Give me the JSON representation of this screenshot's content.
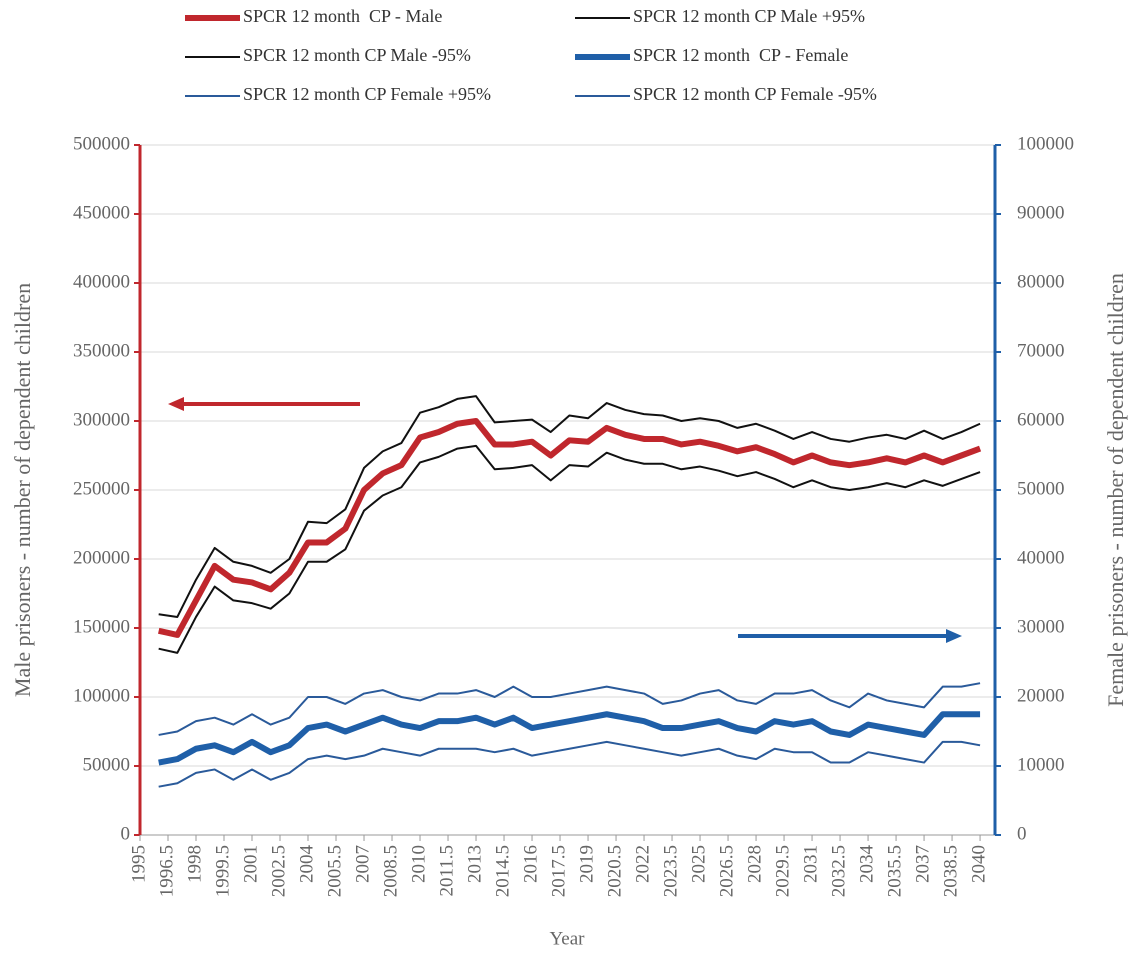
{
  "chart_data": {
    "type": "line",
    "x_label": "Year",
    "y_label": "Male prisoners - number of dependent children",
    "y2_label": "Female prisoners - number of dependent children",
    "x": [
      1996,
      1997,
      1998,
      1999,
      2000,
      2001,
      2002,
      2003,
      2004,
      2005,
      2006,
      2007,
      2008,
      2009,
      2010,
      2011,
      2012,
      2013,
      2014,
      2015,
      2016,
      2017,
      2018,
      2019,
      2020,
      2021,
      2022,
      2023,
      2024,
      2025,
      2026,
      2027,
      2028,
      2029,
      2030,
      2031,
      2032,
      2033,
      2034,
      2035,
      2036,
      2037,
      2038,
      2039,
      2040
    ],
    "xlim": [
      1995,
      2040.8
    ],
    "xticks": [
      1995,
      1996.5,
      1998,
      1999.5,
      2001,
      2002.5,
      2004,
      2005.5,
      2007,
      2008.5,
      2010,
      2011.5,
      2013,
      2014.5,
      2016,
      2017.5,
      2019,
      2020.5,
      2022,
      2023.5,
      2025,
      2026.5,
      2028,
      2029.5,
      2031,
      2032.5,
      2034,
      2035.5,
      2037,
      2038.5,
      2040
    ],
    "ylim": [
      0,
      500000
    ],
    "yticks": [
      0,
      50000,
      100000,
      150000,
      200000,
      250000,
      300000,
      350000,
      400000,
      450000,
      500000
    ],
    "y2lim": [
      0,
      100000
    ],
    "y2ticks": [
      0,
      10000,
      20000,
      30000,
      40000,
      50000,
      60000,
      70000,
      80000,
      90000,
      100000
    ],
    "grid": true,
    "y_axis_color": "#c0272d",
    "y2_axis_color": "#1f5fa8",
    "series": [
      {
        "name": "SPCR 12 month  CP - Male",
        "color": "#c0272d",
        "width": 6,
        "values": [
          148000,
          145000,
          170000,
          195000,
          185000,
          183000,
          178000,
          190000,
          212000,
          212000,
          222000,
          250000,
          262000,
          268000,
          288000,
          292000,
          298000,
          300000,
          283000,
          283000,
          285000,
          275000,
          286000,
          285000,
          295000,
          290000,
          287000,
          287000,
          283000,
          285000,
          282000,
          278000,
          281000,
          276000,
          270000,
          275000,
          270000,
          268000,
          270000,
          273000,
          270000,
          275000,
          270000,
          275000,
          280000
        ]
      },
      {
        "name": "SPCR 12 month CP Male +95%",
        "color": "#111111",
        "width": 2,
        "values": [
          160000,
          158000,
          185000,
          208000,
          198000,
          195000,
          190000,
          200000,
          227000,
          226000,
          236000,
          266000,
          278000,
          284000,
          306000,
          310000,
          316000,
          318000,
          299000,
          300000,
          301000,
          292000,
          304000,
          302000,
          313000,
          308000,
          305000,
          304000,
          300000,
          302000,
          300000,
          295000,
          298000,
          293000,
          287000,
          292000,
          287000,
          285000,
          288000,
          290000,
          287000,
          293000,
          287000,
          292000,
          298000
        ]
      },
      {
        "name": "SPCR 12 month CP Male -95%",
        "color": "#111111",
        "width": 2,
        "values": [
          135000,
          132000,
          158000,
          180000,
          170000,
          168000,
          164000,
          175000,
          198000,
          198000,
          207000,
          235000,
          246000,
          252000,
          270000,
          274000,
          280000,
          282000,
          265000,
          266000,
          268000,
          257000,
          268000,
          267000,
          277000,
          272000,
          269000,
          269000,
          265000,
          267000,
          264000,
          260000,
          263000,
          258000,
          252000,
          257000,
          252000,
          250000,
          252000,
          255000,
          252000,
          257000,
          253000,
          258000,
          263000
        ]
      },
      {
        "name": "SPCR 12 month  CP - Female",
        "color": "#1f5fa8",
        "width": 6,
        "axis": "y2",
        "values": [
          10500,
          11000,
          12500,
          13000,
          12000,
          13500,
          12000,
          13000,
          15500,
          16000,
          15000,
          16000,
          17000,
          16000,
          15500,
          16500,
          16500,
          17000,
          16000,
          17000,
          15500,
          16000,
          16500,
          17000,
          17500,
          17000,
          16500,
          15500,
          15500,
          16000,
          16500,
          15500,
          15000,
          16500,
          16000,
          16500,
          15000,
          14500,
          16000,
          15500,
          15000,
          14500,
          17500,
          17500,
          17500
        ]
      },
      {
        "name": "SPCR 12 month CP Female +95%",
        "color": "#2a5a9a",
        "width": 2,
        "axis": "y2",
        "values": [
          14500,
          15000,
          16500,
          17000,
          16000,
          17500,
          16000,
          17000,
          20000,
          20000,
          19000,
          20500,
          21000,
          20000,
          19500,
          20500,
          20500,
          21000,
          20000,
          21500,
          20000,
          20000,
          20500,
          21000,
          21500,
          21000,
          20500,
          19000,
          19500,
          20500,
          21000,
          19500,
          19000,
          20500,
          20500,
          21000,
          19500,
          18500,
          20500,
          19500,
          19000,
          18500,
          21500,
          21500,
          22000
        ]
      },
      {
        "name": "SPCR 12 month CP Female -95%",
        "color": "#2a5a9a",
        "width": 2,
        "axis": "y2",
        "values": [
          7000,
          7500,
          9000,
          9500,
          8000,
          9500,
          8000,
          9000,
          11000,
          11500,
          11000,
          11500,
          12500,
          12000,
          11500,
          12500,
          12500,
          12500,
          12000,
          12500,
          11500,
          12000,
          12500,
          13000,
          13500,
          13000,
          12500,
          12000,
          11500,
          12000,
          12500,
          11500,
          11000,
          12500,
          12000,
          12000,
          10500,
          10500,
          12000,
          11500,
          11000,
          10500,
          13500,
          13500,
          13000
        ]
      }
    ]
  }
}
